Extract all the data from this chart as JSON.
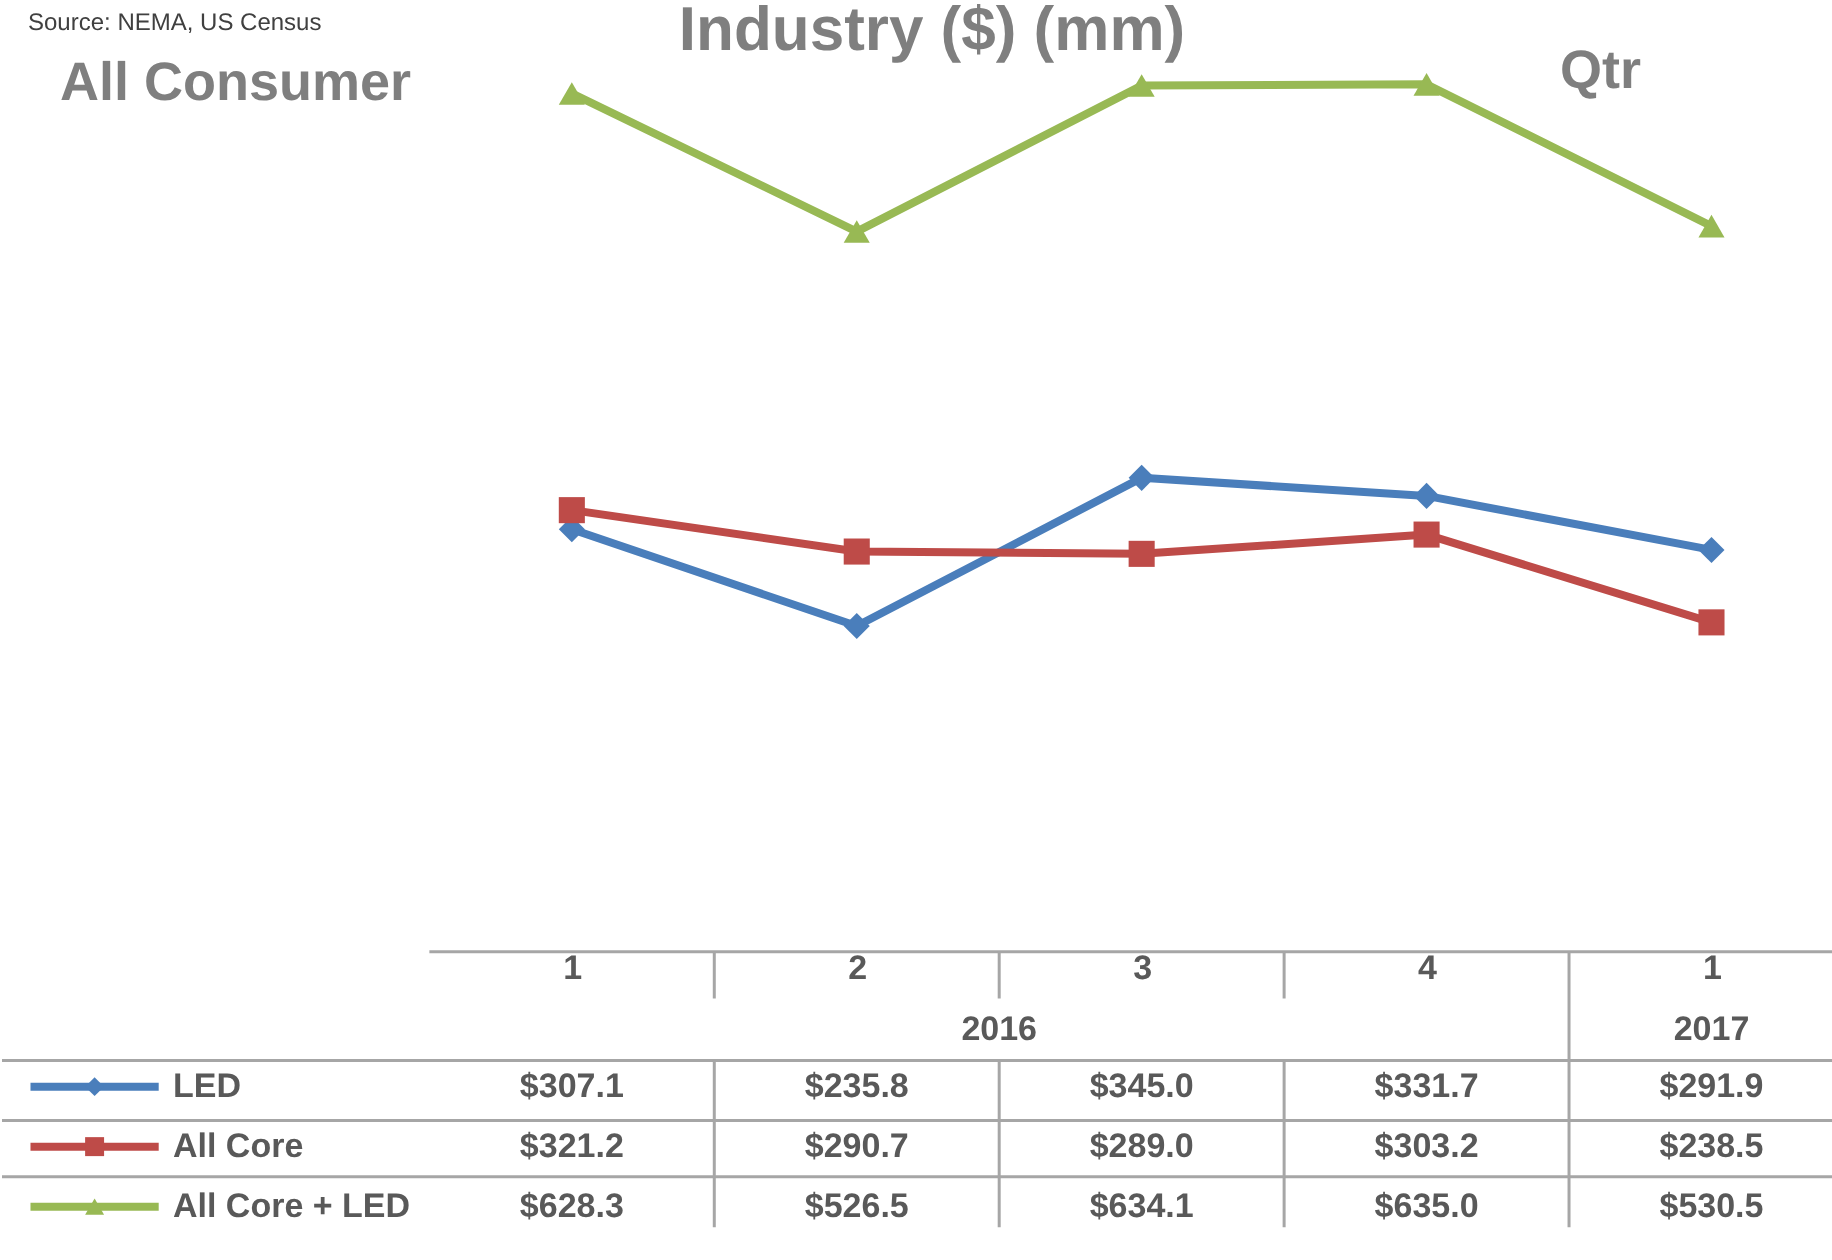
{
  "chart_data": {
    "type": "line",
    "title": "Industry ($) (mm)",
    "categories": [
      "1",
      "2",
      "3",
      "4",
      "1"
    ],
    "annotations": [
      "Source: NEMA, US Census",
      "All Consumer",
      "Qtr",
      "2016",
      "2017"
    ],
    "legend": "bottom left",
    "line_style": "solid",
    "series": [
      {
        "name": "LED",
        "color": "#4a7ebb",
        "marker": "diamond",
        "values": [
          307.1,
          235.8,
          345.0,
          331.7,
          291.9
        ],
        "value_labels": [
          "$307.1",
          "$235.8",
          "$345.0",
          "$331.7",
          "$291.9"
        ]
      },
      {
        "name": "All Core",
        "color": "#be4b48",
        "marker": "square",
        "values": [
          321.2,
          290.7,
          289.0,
          303.2,
          238.5
        ],
        "value_labels": [
          "$321.2",
          "$290.7",
          "$289.0",
          "$303.2",
          "$238.5"
        ]
      },
      {
        "name": "All Core + LED",
        "color": "#98b954",
        "marker": "triangle",
        "values": [
          628.3,
          526.5,
          634.1,
          635.0,
          530.5
        ],
        "value_labels": [
          "$628.3",
          "$526.5",
          "$634.1",
          "$635.0",
          "$530.5"
        ]
      }
    ]
  }
}
